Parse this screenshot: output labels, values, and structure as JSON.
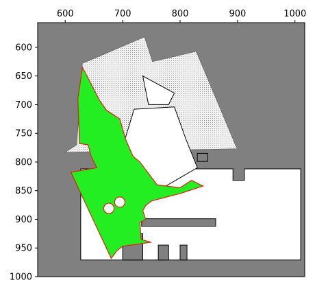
{
  "chart_data": {
    "type": "heatmap",
    "title": "",
    "xlabel": "",
    "ylabel": "",
    "xlim": [
      552,
      1017
    ],
    "ylim": [
      1000,
      557
    ],
    "y_inverted": true,
    "x_ticks": [
      600,
      700,
      800,
      900,
      1000
    ],
    "y_ticks": [
      600,
      650,
      700,
      750,
      800,
      850,
      900,
      950,
      1000
    ],
    "grid": false,
    "legend": "none",
    "colors": {
      "unknown": "#808080",
      "free": "#ffffff",
      "sparse_free": "#ececec",
      "obstacle": "#000000",
      "coverage": "#22ee22",
      "coverage_border": "#dd2211"
    },
    "regions": {
      "sparse_free_area": [
        [
          630,
          628
        ],
        [
          738,
          582
        ],
        [
          752,
          625
        ],
        [
          828,
          607
        ],
        [
          897,
          772
        ],
        [
          900,
          777
        ],
        [
          600,
          783
        ],
        [
          620,
          770
        ]
      ],
      "free_areas": [
        [
          [
            627,
            812
          ],
          [
            892,
            812
          ],
          [
            892,
            832
          ],
          [
            912,
            832
          ],
          [
            912,
            812
          ],
          [
            1010,
            812
          ],
          [
            1010,
            971
          ],
          [
            627,
            971
          ]
        ],
        [
          [
            720,
            708
          ],
          [
            790,
            704
          ],
          [
            810,
            760
          ],
          [
            830,
            810
          ],
          [
            770,
            845
          ],
          [
            700,
            840
          ],
          [
            695,
            790
          ]
        ],
        [
          [
            735,
            650
          ],
          [
            790,
            680
          ],
          [
            780,
            700
          ],
          [
            745,
            700
          ]
        ]
      ],
      "obstacle_rects": [
        [
          733,
          899,
          862,
          912
        ],
        [
          830,
          785,
          848,
          799
        ],
        [
          700,
          925,
          735,
          971
        ],
        [
          762,
          945,
          780,
          971
        ],
        [
          800,
          945,
          812,
          971
        ]
      ],
      "coverage_polygon": [
        [
          630,
          635
        ],
        [
          660,
          693
        ],
        [
          672,
          710
        ],
        [
          695,
          725
        ],
        [
          705,
          760
        ],
        [
          718,
          790
        ],
        [
          730,
          800
        ],
        [
          760,
          840
        ],
        [
          800,
          845
        ],
        [
          820,
          832
        ],
        [
          840,
          842
        ],
        [
          800,
          855
        ],
        [
          750,
          868
        ],
        [
          740,
          876
        ],
        [
          735,
          885
        ],
        [
          740,
          900
        ],
        [
          730,
          905
        ],
        [
          732,
          935
        ],
        [
          742,
          938
        ],
        [
          750,
          940
        ],
        [
          700,
          947
        ],
        [
          690,
          955
        ],
        [
          680,
          968
        ],
        [
          610,
          818
        ],
        [
          655,
          810
        ],
        [
          645,
          790
        ],
        [
          640,
          770
        ],
        [
          625,
          768
        ],
        [
          622,
          690
        ]
      ],
      "coverage_holes": [
        [
          676,
          881,
          9
        ],
        [
          695,
          870,
          9
        ]
      ]
    }
  }
}
